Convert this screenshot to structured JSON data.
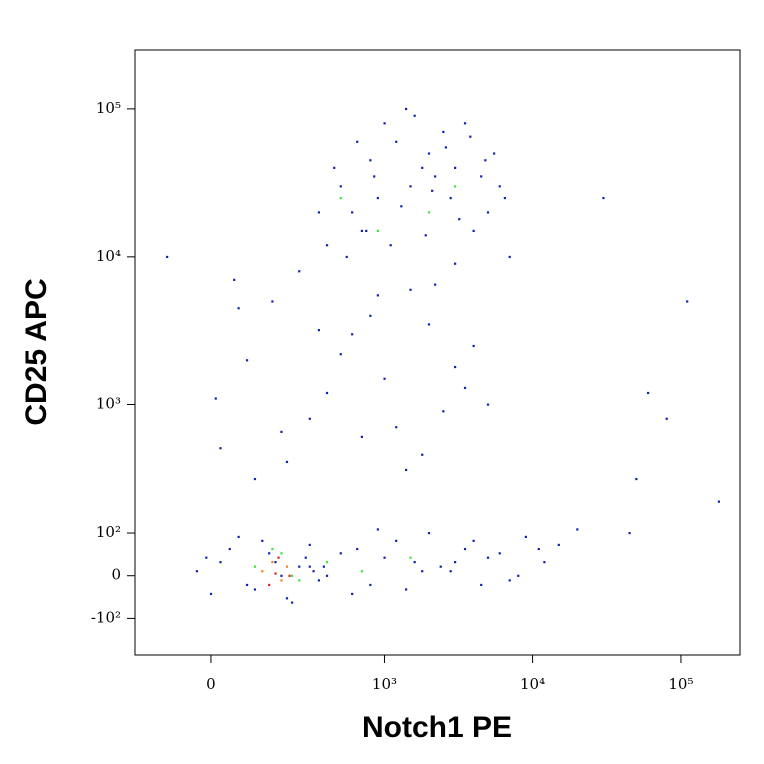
{
  "chart_data": {
    "type": "scatter",
    "xlabel": "Notch1 PE",
    "ylabel": "CD25 APC",
    "xscale": "biexponential",
    "yscale": "biexponential",
    "xlim": [
      -200,
      250000
    ],
    "ylim": [
      -220,
      250000
    ],
    "xticks": [
      0,
      {
        "value": 1000,
        "label": "10³"
      },
      {
        "value": 10000,
        "label": "10⁴"
      },
      {
        "value": 100000,
        "label": "10⁵"
      }
    ],
    "yticks": [
      {
        "value": -100,
        "label": "-10²"
      },
      0,
      {
        "value": 100,
        "label": "10²"
      },
      {
        "value": 1000,
        "label": "10³"
      },
      {
        "value": 10000,
        "label": "10⁴"
      },
      {
        "value": 100000,
        "label": "10⁵"
      }
    ],
    "series": [
      {
        "color": "#1020b0",
        "x": [
          500,
          800,
          1200,
          2000,
          3000,
          4500,
          600,
          900,
          1500,
          2500,
          3500,
          5000,
          700,
          1100,
          1800,
          2800,
          4000,
          6000,
          400,
          650,
          1000,
          1600,
          2200,
          3200,
          5500,
          7000,
          350,
          550,
          850,
          1300,
          1900,
          2600,
          3800,
          4800,
          6500,
          450,
          750,
          1400,
          2100,
          3000,
          20,
          80,
          150,
          300,
          600,
          1000,
          1500,
          2500,
          4000,
          50,
          200,
          400,
          800,
          1200,
          2000,
          3000,
          100,
          250,
          500,
          700,
          1800,
          5000,
          10,
          350,
          900,
          1400,
          2200,
          3500,
          60,
          180,
          300,
          500,
          800,
          1200,
          1600,
          2000,
          2800,
          3500,
          5000,
          7000,
          9000,
          12000,
          15000,
          20000,
          400,
          650,
          1000,
          1400,
          2400,
          4000,
          6000,
          8000,
          11000,
          600,
          900,
          1800,
          3000,
          4500,
          -30,
          0,
          40,
          80,
          120,
          160,
          200,
          250,
          300,
          350,
          -10,
          60,
          100,
          140,
          180,
          220,
          280,
          320,
          20,
          380,
          30000,
          50000,
          110000,
          180000,
          80000,
          -100,
          45000,
          60000
        ],
        "y": [
          30000,
          45000,
          60000,
          50000,
          40000,
          35000,
          20000,
          25000,
          30000,
          70000,
          80000,
          20000,
          15000,
          12000,
          40000,
          25000,
          15000,
          30000,
          12000,
          60000,
          80000,
          90000,
          35000,
          18000,
          50000,
          10000,
          20000,
          10000,
          35000,
          22000,
          14000,
          55000,
          65000,
          45000,
          25000,
          40000,
          15000,
          100000,
          28000,
          9000,
          500,
          2000,
          5000,
          800,
          3000,
          1500,
          6000,
          900,
          2500,
          7000,
          400,
          1200,
          4000,
          700,
          3500,
          1800,
          300,
          8000,
          2200,
          600,
          450,
          1000,
          1100,
          3200,
          5500,
          350,
          6500,
          1300,
          4500,
          650,
          20,
          50,
          -20,
          80,
          30,
          100,
          10,
          60,
          40,
          -10,
          90,
          30,
          70,
          110,
          0,
          60,
          40,
          -30,
          20,
          80,
          50,
          0,
          60,
          -40,
          110,
          10,
          30,
          -20,
          10,
          -40,
          60,
          -20,
          80,
          30,
          -50,
          20,
          70,
          -10,
          40,
          90,
          -30,
          50,
          0,
          -60,
          40,
          10,
          30,
          20,
          25000,
          300,
          5000,
          200,
          800,
          10000,
          100,
          1200
        ]
      },
      {
        "color": "#40e040",
        "x": [
          100,
          180,
          250,
          400,
          700,
          2000,
          3000,
          1500,
          150,
          220,
          500,
          900
        ],
        "y": [
          20,
          50,
          -10,
          30,
          10,
          20000,
          30000,
          40,
          60,
          0,
          25000,
          15000
        ]
      },
      {
        "color": "#f08020",
        "x": [
          120,
          150,
          180,
          200
        ],
        "y": [
          10,
          30,
          -10,
          20
        ]
      },
      {
        "color": "#e0201a",
        "x": [
          140,
          170,
          210,
          160
        ],
        "y": [
          -20,
          40,
          0,
          5
        ]
      }
    ]
  }
}
